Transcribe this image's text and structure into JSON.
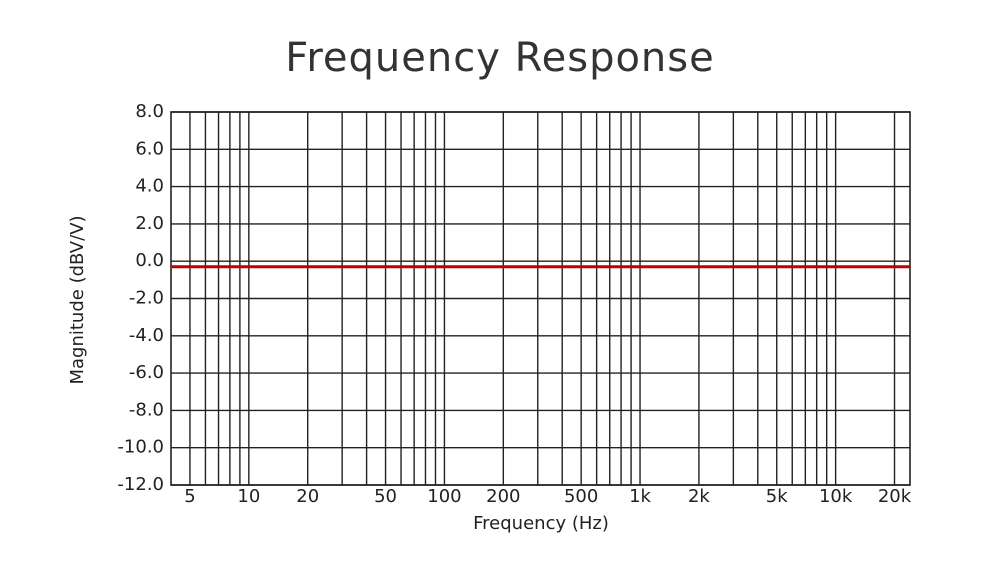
{
  "chart_data": {
    "type": "line",
    "title": "Frequency Response",
    "x_label": "Frequency (Hz)",
    "y_label": "Magnitude (dBV/V)",
    "x": [
      4,
      24000
    ],
    "values": [
      -0.3,
      -0.3
    ],
    "color": "#c00000",
    "xlog": true,
    "grid": true,
    "xlim": [
      4,
      24000
    ],
    "xticks": [
      5,
      10,
      20,
      50,
      100,
      200,
      500,
      {
        "value": 1000,
        "label": "1k"
      },
      {
        "value": 2000,
        "label": "2k"
      },
      {
        "value": 5000,
        "label": "5k"
      },
      {
        "value": 10000,
        "label": "10k"
      },
      {
        "value": 20000,
        "label": "20k"
      }
    ],
    "ylim": [
      -12,
      8
    ],
    "yticks": [
      {
        "value": -12,
        "label": "-12.0"
      },
      {
        "value": -10,
        "label": "-10.0"
      },
      {
        "value": -8,
        "label": "-8.0"
      },
      {
        "value": -6,
        "label": "-6.0"
      },
      {
        "value": -4,
        "label": "-4.0"
      },
      {
        "value": -2,
        "label": "-2.0"
      },
      {
        "value": 0,
        "label": "0.0"
      },
      {
        "value": 2,
        "label": "2.0"
      },
      {
        "value": 4,
        "label": "4.0"
      },
      {
        "value": 6,
        "label": "6.0"
      },
      {
        "value": 8,
        "label": "8.0"
      }
    ]
  }
}
